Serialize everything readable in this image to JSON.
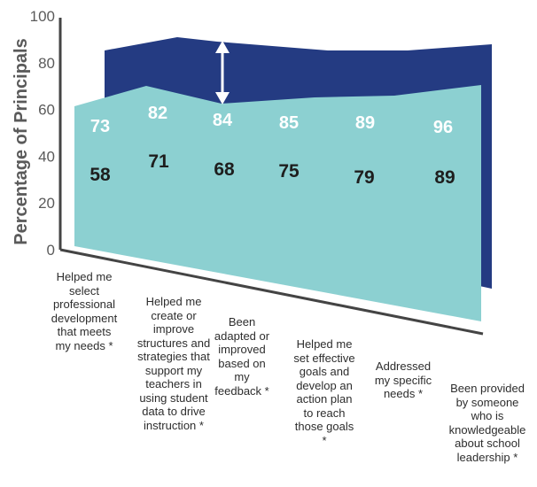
{
  "chart_data": {
    "type": "area",
    "ylabel": "Percentage of Principals",
    "yticks": [
      "0",
      "20",
      "40",
      "60",
      "80",
      "100"
    ],
    "ylim": [
      0,
      100
    ],
    "categories": [
      "Helped me\nselect\nprofessional\ndevelopment\nthat meets\nmy needs *",
      "Helped me\ncreate or\nimprove\nstructures and\nstrategies that\nsupport my\nteachers in\nusing student\ndata to drive\ninstruction *",
      "Been\nadapted or\nimproved\nbased on\nmy\nfeedback *",
      "Helped me\nset effective\ngoals and\ndevelop an\naction plan\nto reach\nthose goals\n*",
      "Addressed\nmy specific\nneeds *",
      "Been provided\nby someone\nwho is\nknowledgeable\nabout school\nleadership *"
    ],
    "series": [
      {
        "values": [
          73,
          82,
          84,
          85,
          89,
          96
        ],
        "color": "#243b82"
      },
      {
        "values": [
          58,
          71,
          68,
          75,
          79,
          89
        ],
        "color": "#8cd0d1"
      }
    ],
    "annotation": "double-arrow-between-series"
  }
}
